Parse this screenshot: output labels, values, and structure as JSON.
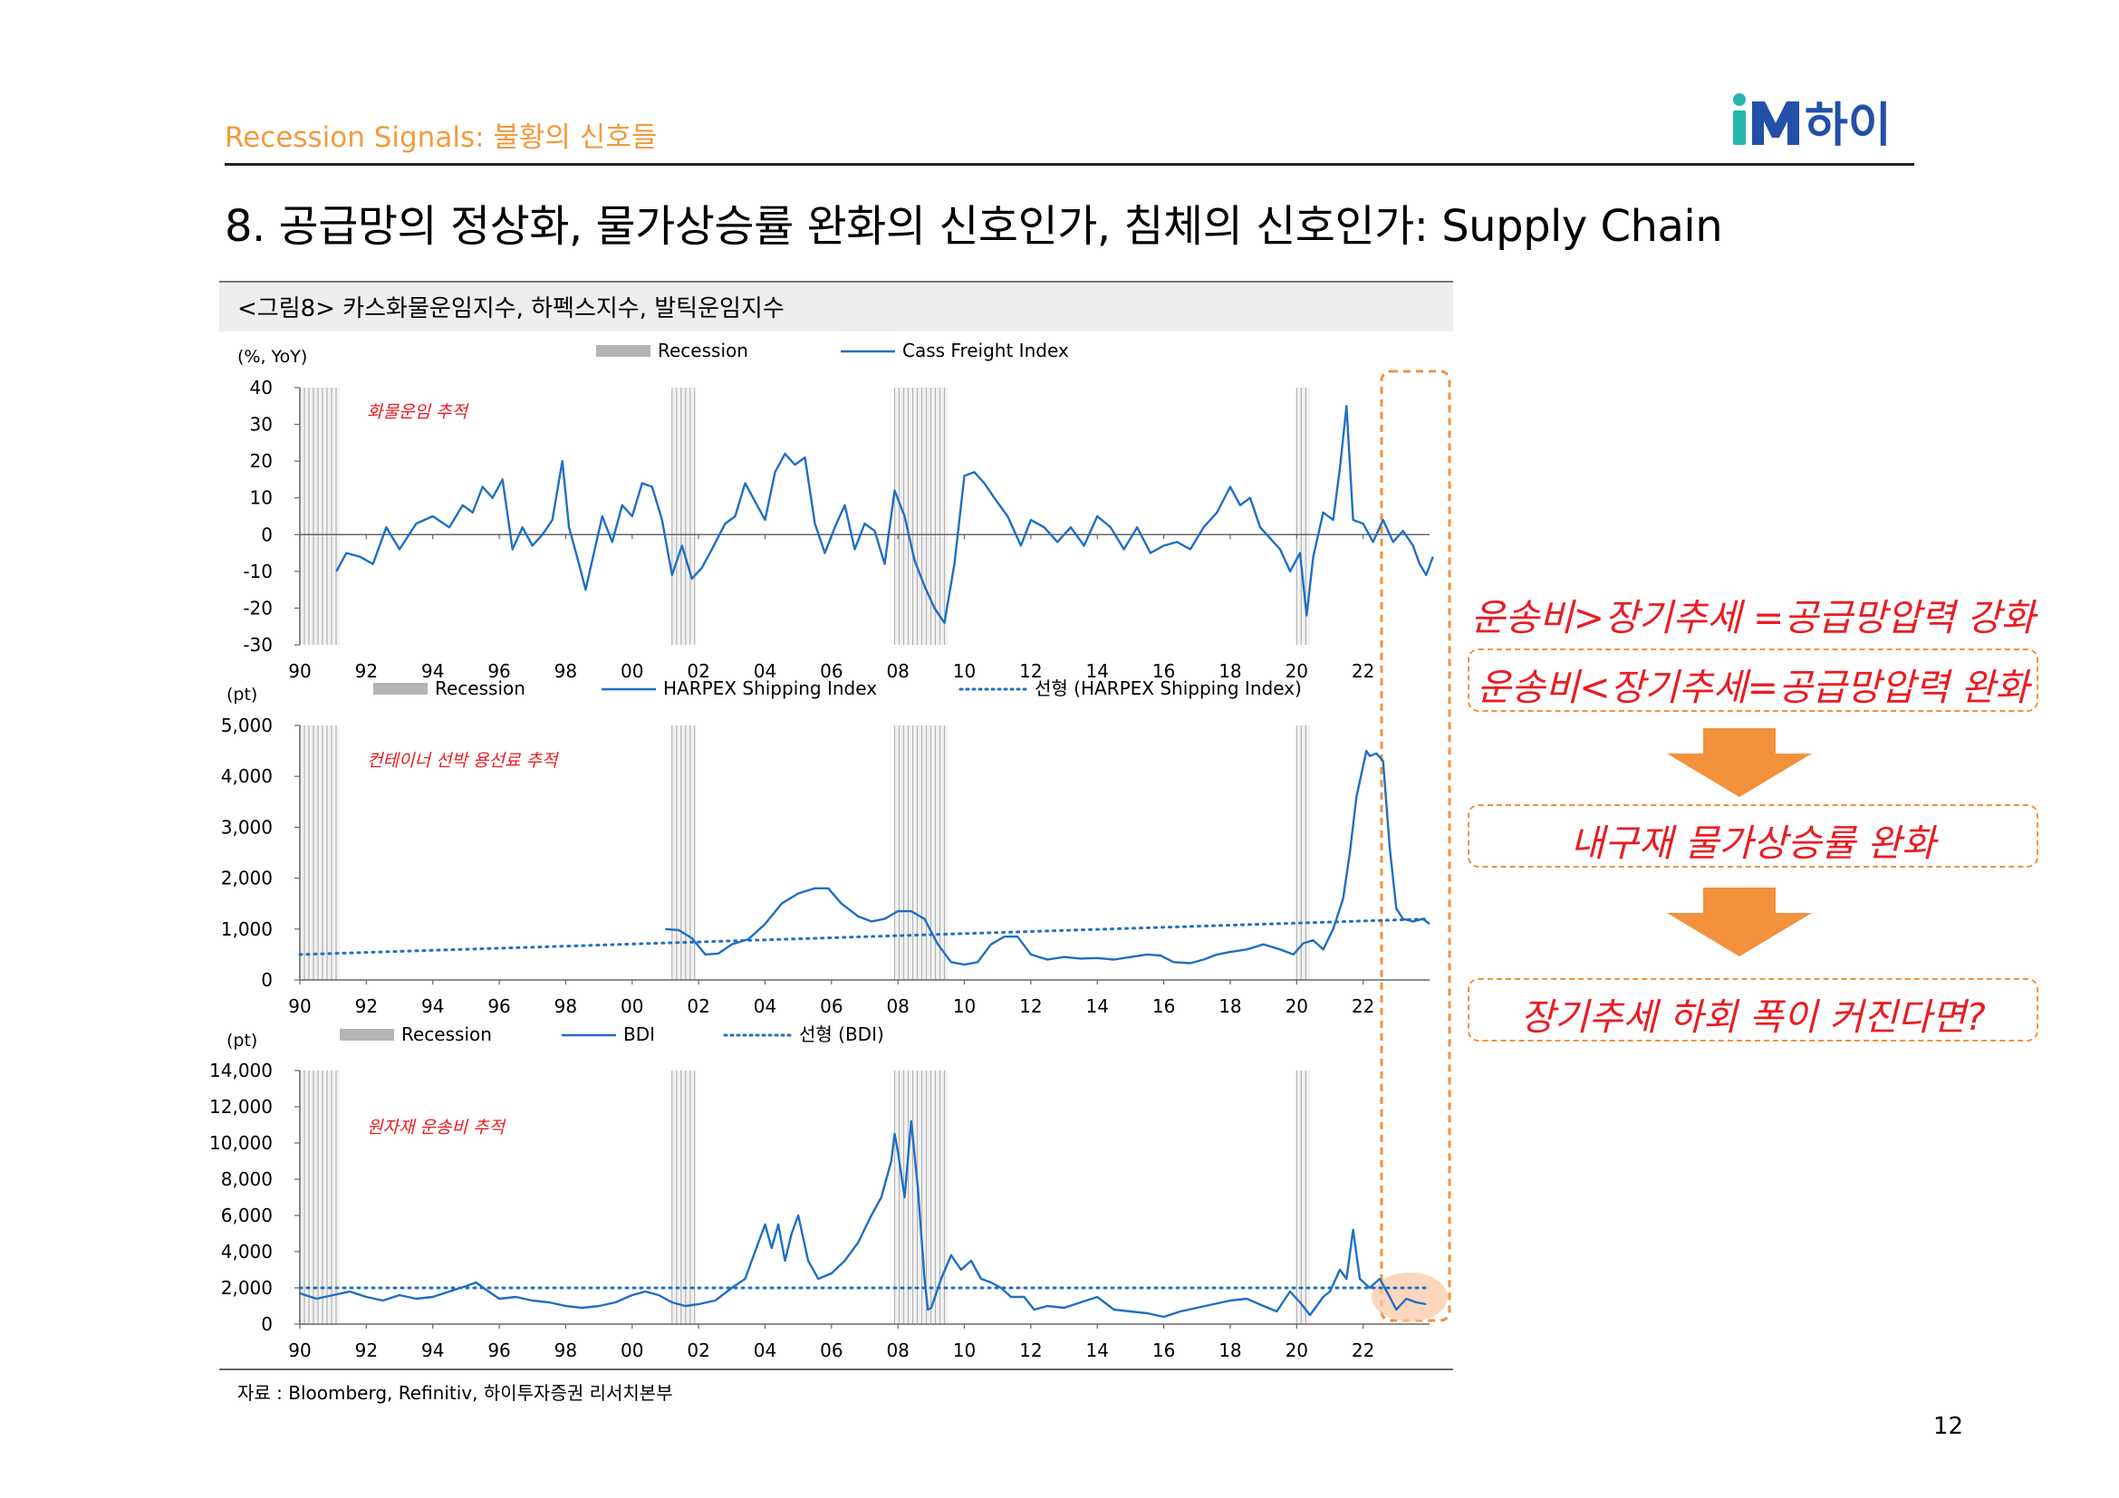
{
  "header": {
    "section_label": "Recession Signals: 불황의 신호들",
    "logo_text": "iM하이",
    "title": "8. 공급망의 정상화, 물가상승률 완화의 신호인가, 침체의 신호인가: Supply Chain"
  },
  "figure": {
    "caption": "<그림8> 카스화물운임지수, 하펙스지수, 발틱운임지수",
    "source": "자료 : Bloomberg, Refinitiv, 하이투자증권 리서치본부"
  },
  "page_number": "12",
  "annotations": {
    "line1": "운송비>장기추세 =공급망압력 강화",
    "line2": "운송비<장기추세=공급망압력 완화",
    "box3": "내구재 물가상승률 완화",
    "box4": "장기추세 하회 폭이 커진다면?"
  },
  "colors": {
    "series": "#1f6fc4",
    "recession": "#b4b4b4",
    "accent_orange": "#f3913d",
    "annotation_red": "#ea1c22",
    "logo_teal": "#27b6ae",
    "logo_blue": "#2250a8"
  },
  "chart_data": [
    {
      "type": "line",
      "title": "Cass Freight Index",
      "unit_label": "(%, YoY)",
      "annotation": "화물운임 추적",
      "legend": [
        "Recession",
        "Cass Freight Index"
      ],
      "ylim": [
        -30,
        40
      ],
      "yticks": [
        "40",
        "30",
        "20",
        "10",
        "0",
        "-10",
        "-20",
        "-30"
      ],
      "xticks": [
        "90",
        "92",
        "94",
        "96",
        "98",
        "00",
        "02",
        "04",
        "06",
        "08",
        "10",
        "12",
        "14",
        "16",
        "18",
        "20",
        "22"
      ],
      "recessions": [
        [
          1990.0,
          1991.2
        ],
        [
          2001.2,
          2001.9
        ],
        [
          2007.9,
          2009.5
        ],
        [
          2020.0,
          2020.4
        ]
      ],
      "series": [
        {
          "name": "Cass Freight Index",
          "x": [
            1991.1,
            1991.4,
            1991.8,
            1992.2,
            1992.6,
            1993.0,
            1993.5,
            1994.0,
            1994.5,
            1994.9,
            1995.2,
            1995.5,
            1995.8,
            1996.1,
            1996.4,
            1996.7,
            1997.0,
            1997.3,
            1997.6,
            1997.9,
            1998.1,
            1998.4,
            1998.6,
            1998.9,
            1999.1,
            1999.4,
            1999.7,
            2000.0,
            2000.3,
            2000.6,
            2000.9,
            2001.2,
            2001.5,
            2001.8,
            2002.1,
            2002.4,
            2002.8,
            2003.1,
            2003.4,
            2003.7,
            2004.0,
            2004.3,
            2004.6,
            2004.9,
            2005.2,
            2005.5,
            2005.8,
            2006.1,
            2006.4,
            2006.7,
            2007.0,
            2007.3,
            2007.6,
            2007.9,
            2008.2,
            2008.5,
            2008.8,
            2009.1,
            2009.4,
            2009.7,
            2010.0,
            2010.3,
            2010.6,
            2010.9,
            2011.3,
            2011.7,
            2012.0,
            2012.4,
            2012.8,
            2013.2,
            2013.6,
            2014.0,
            2014.4,
            2014.8,
            2015.2,
            2015.6,
            2016.0,
            2016.4,
            2016.8,
            2017.2,
            2017.6,
            2018.0,
            2018.3,
            2018.6,
            2018.9,
            2019.2,
            2019.5,
            2019.8,
            2020.1,
            2020.3,
            2020.5,
            2020.8,
            2021.1,
            2021.3,
            2021.5,
            2021.7,
            2022.0,
            2022.3,
            2022.6,
            2022.9,
            2023.2,
            2023.5,
            2023.7,
            2023.9,
            2024.1
          ],
          "values": [
            -10,
            -5,
            -6,
            -8,
            2,
            -4,
            3,
            5,
            2,
            8,
            6,
            13,
            10,
            15,
            -4,
            2,
            -3,
            0,
            4,
            20,
            2,
            -8,
            -15,
            -3,
            5,
            -2,
            8,
            5,
            14,
            13,
            4,
            -11,
            -3,
            -12,
            -9,
            -4,
            3,
            5,
            14,
            9,
            4,
            17,
            22,
            19,
            21,
            3,
            -5,
            2,
            8,
            -4,
            3,
            1,
            -8,
            12,
            5,
            -7,
            -14,
            -20,
            -24,
            -8,
            16,
            17,
            14,
            10,
            5,
            -3,
            4,
            2,
            -2,
            2,
            -3,
            5,
            2,
            -4,
            2,
            -5,
            -3,
            -2,
            -4,
            2,
            6,
            13,
            8,
            10,
            2,
            -1,
            -4,
            -10,
            -5,
            -22,
            -6,
            6,
            4,
            18,
            35,
            4,
            3,
            -2,
            4,
            -2,
            1,
            -3,
            -8,
            -11,
            -6
          ]
        }
      ]
    },
    {
      "type": "line",
      "title": "HARPEX Shipping Index",
      "unit_label": "(pt)",
      "annotation": "컨테이너 선박 용선료 추적",
      "legend": [
        "Recession",
        "HARPEX Shipping Index",
        "선형 (HARPEX Shipping Index)"
      ],
      "ylim": [
        0,
        5000
      ],
      "yticks": [
        "5,000",
        "4,000",
        "3,000",
        "2,000",
        "1,000",
        "0"
      ],
      "xticks": [
        "90",
        "92",
        "94",
        "96",
        "98",
        "00",
        "02",
        "04",
        "06",
        "08",
        "10",
        "12",
        "14",
        "16",
        "18",
        "20",
        "22"
      ],
      "recessions": [
        [
          1990.0,
          1991.2
        ],
        [
          2001.2,
          2001.9
        ],
        [
          2007.9,
          2009.5
        ],
        [
          2020.0,
          2020.4
        ]
      ],
      "series": [
        {
          "name": "HARPEX Shipping Index",
          "x": [
            2001.0,
            2001.4,
            2001.8,
            2002.2,
            2002.6,
            2003.0,
            2003.5,
            2004.0,
            2004.5,
            2005.0,
            2005.5,
            2005.9,
            2006.3,
            2006.8,
            2007.2,
            2007.6,
            2008.0,
            2008.4,
            2008.8,
            2009.2,
            2009.6,
            2010.0,
            2010.4,
            2010.8,
            2011.2,
            2011.6,
            2012.0,
            2012.5,
            2013.0,
            2013.5,
            2014.0,
            2014.5,
            2015.0,
            2015.5,
            2015.9,
            2016.3,
            2016.8,
            2017.2,
            2017.6,
            2018.0,
            2018.5,
            2019.0,
            2019.5,
            2019.9,
            2020.2,
            2020.5,
            2020.8,
            2021.1,
            2021.4,
            2021.6,
            2021.8,
            2022.0,
            2022.1,
            2022.2,
            2022.4,
            2022.6,
            2022.8,
            2023.0,
            2023.2,
            2023.5,
            2023.8,
            2024.0
          ],
          "values": [
            1000,
            980,
            820,
            500,
            520,
            700,
            800,
            1100,
            1500,
            1700,
            1800,
            1800,
            1500,
            1250,
            1150,
            1200,
            1350,
            1350,
            1200,
            700,
            350,
            300,
            350,
            700,
            850,
            850,
            500,
            400,
            450,
            420,
            430,
            400,
            450,
            500,
            480,
            350,
            330,
            400,
            500,
            550,
            600,
            700,
            600,
            500,
            720,
            780,
            600,
            1000,
            1600,
            2500,
            3600,
            4200,
            4500,
            4400,
            4450,
            4300,
            2600,
            1400,
            1200,
            1150,
            1200,
            1100
          ]
        },
        {
          "name": "선형 (HARPEX Shipping Index)",
          "x": [
            1990.0,
            2024.0
          ],
          "values": [
            500,
            1200
          ]
        }
      ]
    },
    {
      "type": "line",
      "title": "BDI",
      "unit_label": "(pt)",
      "annotation": "원자재 운송비 추적",
      "legend": [
        "Recession",
        "BDI",
        "선형 (BDI)"
      ],
      "ylim": [
        0,
        14000
      ],
      "yticks": [
        "14,000",
        "12,000",
        "10,000",
        "8,000",
        "6,000",
        "4,000",
        "2,000",
        "0"
      ],
      "xticks": [
        "90",
        "92",
        "94",
        "96",
        "98",
        "00",
        "02",
        "04",
        "06",
        "08",
        "10",
        "12",
        "14",
        "16",
        "18",
        "20",
        "22"
      ],
      "recessions": [
        [
          1990.0,
          1991.2
        ],
        [
          2001.2,
          2001.9
        ],
        [
          2007.9,
          2009.5
        ],
        [
          2020.0,
          2020.4
        ]
      ],
      "series": [
        {
          "name": "BDI",
          "x": [
            1990.0,
            1990.5,
            1991.0,
            1991.5,
            1992.0,
            1992.5,
            1993.0,
            1993.5,
            1994.0,
            1994.5,
            1995.0,
            1995.3,
            1995.6,
            1996.0,
            1996.5,
            1997.0,
            1997.5,
            1998.0,
            1998.5,
            1999.0,
            1999.5,
            2000.0,
            2000.4,
            2000.8,
            2001.2,
            2001.6,
            2002.0,
            2002.5,
            2003.0,
            2003.4,
            2003.8,
            2004.0,
            2004.2,
            2004.4,
            2004.6,
            2004.8,
            2005.0,
            2005.3,
            2005.6,
            2006.0,
            2006.4,
            2006.8,
            2007.2,
            2007.5,
            2007.8,
            2007.9,
            2008.0,
            2008.2,
            2008.4,
            2008.6,
            2008.8,
            2008.9,
            2009.0,
            2009.3,
            2009.6,
            2009.9,
            2010.2,
            2010.5,
            2010.8,
            2011.1,
            2011.4,
            2011.8,
            2012.1,
            2012.5,
            2013.0,
            2013.5,
            2014.0,
            2014.5,
            2015.0,
            2015.5,
            2016.0,
            2016.5,
            2017.0,
            2017.5,
            2018.0,
            2018.5,
            2019.0,
            2019.4,
            2019.8,
            2020.1,
            2020.4,
            2020.8,
            2021.0,
            2021.3,
            2021.5,
            2021.7,
            2021.9,
            2022.2,
            2022.5,
            2022.8,
            2023.0,
            2023.3,
            2023.6,
            2023.9
          ],
          "values": [
            1700,
            1400,
            1600,
            1800,
            1500,
            1300,
            1600,
            1400,
            1500,
            1800,
            2100,
            2300,
            1900,
            1400,
            1500,
            1300,
            1200,
            1000,
            900,
            1000,
            1200,
            1600,
            1800,
            1600,
            1200,
            1000,
            1100,
            1300,
            2000,
            2500,
            4500,
            5500,
            4200,
            5500,
            3500,
            5000,
            6000,
            3500,
            2500,
            2800,
            3500,
            4500,
            6000,
            7000,
            9000,
            10500,
            9500,
            7000,
            11200,
            7500,
            2500,
            800,
            900,
            2500,
            3800,
            3000,
            3500,
            2500,
            2300,
            2000,
            1500,
            1500,
            800,
            1000,
            900,
            1200,
            1500,
            800,
            700,
            600,
            400,
            700,
            900,
            1100,
            1300,
            1400,
            1000,
            700,
            1800,
            1200,
            500,
            1500,
            1800,
            3000,
            2500,
            5200,
            2500,
            2000,
            2500,
            1500,
            800,
            1400,
            1200,
            1100
          ]
        },
        {
          "name": "선형 (BDI)",
          "x": [
            1990.0,
            2024.0
          ],
          "values": [
            2000,
            2000
          ]
        }
      ]
    }
  ]
}
